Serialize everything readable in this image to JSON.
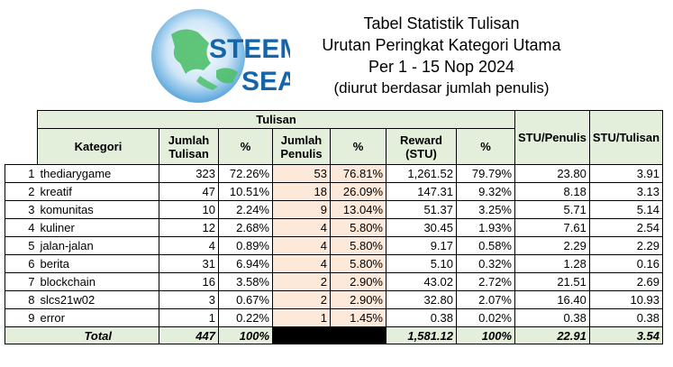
{
  "logo": {
    "line1": "STEEM",
    "line2": "SEA"
  },
  "title": {
    "line1": "Tabel Statistik Tulisan",
    "line2": "Urutan Peringkat Kategori Utama",
    "line3": "Per 1 - 15 Nop 2024",
    "line4": "(diurut berdasar jumlah penulis)"
  },
  "headers": {
    "group": "Tulisan",
    "kategori": "Kategori",
    "jumlah_tulisan": [
      "Jumlah",
      "Tulisan"
    ],
    "pct1": "%",
    "jumlah_penulis": [
      "Jumlah",
      "Penulis"
    ],
    "pct2": "%",
    "reward": [
      "Reward",
      "(STU)"
    ],
    "pct3": "%",
    "stu_penulis": "STU/Penulis",
    "stu_tulisan": "STU/Tulisan"
  },
  "rows": [
    {
      "no": "1",
      "kategori": "thediarygame",
      "tulisan": "323",
      "pct_tulisan": "72.26%",
      "penulis": "53",
      "pct_penulis": "76.81%",
      "reward": "1,261.52",
      "pct_reward": "79.79%",
      "stu_penulis": "23.80",
      "stu_tulisan": "3.91"
    },
    {
      "no": "2",
      "kategori": "kreatif",
      "tulisan": "47",
      "pct_tulisan": "10.51%",
      "penulis": "18",
      "pct_penulis": "26.09%",
      "reward": "147.31",
      "pct_reward": "9.32%",
      "stu_penulis": "8.18",
      "stu_tulisan": "3.13"
    },
    {
      "no": "3",
      "kategori": "komunitas",
      "tulisan": "10",
      "pct_tulisan": "2.24%",
      "penulis": "9",
      "pct_penulis": "13.04%",
      "reward": "51.37",
      "pct_reward": "3.25%",
      "stu_penulis": "5.71",
      "stu_tulisan": "5.14"
    },
    {
      "no": "4",
      "kategori": "kuliner",
      "tulisan": "12",
      "pct_tulisan": "2.68%",
      "penulis": "4",
      "pct_penulis": "5.80%",
      "reward": "30.45",
      "pct_reward": "1.93%",
      "stu_penulis": "7.61",
      "stu_tulisan": "2.54"
    },
    {
      "no": "5",
      "kategori": "jalan-jalan",
      "tulisan": "4",
      "pct_tulisan": "0.89%",
      "penulis": "4",
      "pct_penulis": "5.80%",
      "reward": "9.17",
      "pct_reward": "0.58%",
      "stu_penulis": "2.29",
      "stu_tulisan": "2.29"
    },
    {
      "no": "6",
      "kategori": "berita",
      "tulisan": "31",
      "pct_tulisan": "6.94%",
      "penulis": "4",
      "pct_penulis": "5.80%",
      "reward": "5.10",
      "pct_reward": "0.32%",
      "stu_penulis": "1.28",
      "stu_tulisan": "0.16"
    },
    {
      "no": "7",
      "kategori": "blockchain",
      "tulisan": "16",
      "pct_tulisan": "3.58%",
      "penulis": "2",
      "pct_penulis": "2.90%",
      "reward": "43.02",
      "pct_reward": "2.72%",
      "stu_penulis": "21.51",
      "stu_tulisan": "2.69"
    },
    {
      "no": "8",
      "kategori": "slcs21w02",
      "tulisan": "3",
      "pct_tulisan": "0.67%",
      "penulis": "2",
      "pct_penulis": "2.90%",
      "reward": "32.80",
      "pct_reward": "2.07%",
      "stu_penulis": "16.40",
      "stu_tulisan": "10.93"
    },
    {
      "no": "9",
      "kategori": "error",
      "tulisan": "1",
      "pct_tulisan": "0.22%",
      "penulis": "1",
      "pct_penulis": "1.45%",
      "reward": "0.38",
      "pct_reward": "0.02%",
      "stu_penulis": "0.38",
      "stu_tulisan": "0.38"
    }
  ],
  "total": {
    "label": "Total",
    "tulisan": "447",
    "pct_tulisan": "100%",
    "reward": "1,581.12",
    "pct_reward": "100%",
    "stu_penulis": "22.91",
    "stu_tulisan": "3.54"
  },
  "colors": {
    "header_green": "#e3efda",
    "penulis_peach": "#fde9d9",
    "logo_blue": "#1565a8",
    "logo_green": "#5cc46a"
  }
}
